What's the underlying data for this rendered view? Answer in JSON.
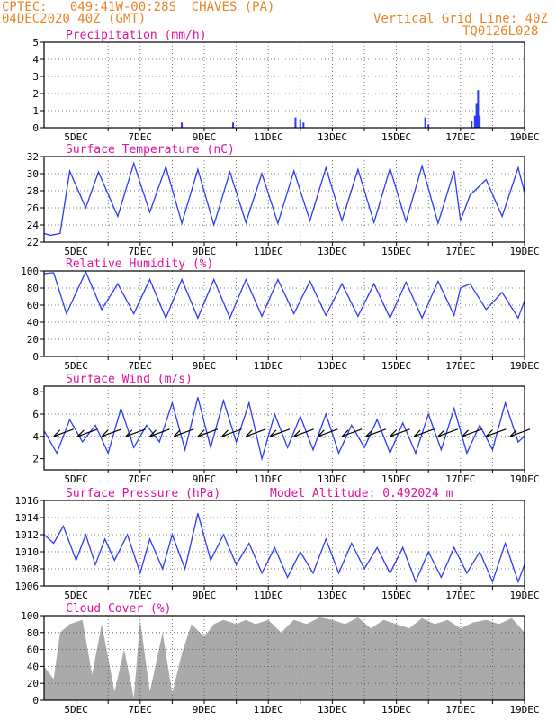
{
  "header": {
    "source": "CPTEC:",
    "location": "049:41W-00:28S",
    "station": "CHAVES (PA)",
    "init": "04DEC2020 40Z (GMT)",
    "grid_note": "Vertical Grid Line: 40Z",
    "code": "TQ0126L028"
  },
  "colors": {
    "header": "#e8862a",
    "title": "#e0119c",
    "line": "#2b3cf0",
    "cloud": "#aaaaaa"
  },
  "x_axis": {
    "ticks": [
      "5DEC",
      "7DEC",
      "9DEC",
      "11DEC",
      "13DEC",
      "15DEC",
      "17DEC",
      "19DEC"
    ]
  },
  "chart_data": [
    {
      "id": "precip",
      "type": "bar",
      "title": "Precipitation (mm/h)",
      "ylim": [
        0,
        5
      ],
      "yticks": [
        "0",
        "1",
        "2",
        "3",
        "4",
        "5"
      ],
      "x": [
        8.3,
        9.9,
        11.85,
        12.0,
        12.1,
        15.9,
        16.0,
        17.35,
        17.45,
        17.5,
        17.55,
        17.6
      ],
      "values": [
        0.3,
        0.3,
        0.6,
        0.5,
        0.3,
        0.6,
        0.2,
        0.4,
        0.7,
        1.4,
        2.2,
        0.7
      ]
    },
    {
      "id": "temp",
      "type": "line",
      "title": "Surface Temperature (nC)",
      "ylim": [
        22,
        32
      ],
      "yticks": [
        "22",
        "24",
        "26",
        "28",
        "30",
        "32"
      ],
      "x": [
        4.0,
        4.2,
        4.5,
        4.8,
        5.3,
        5.7,
        6.3,
        6.8,
        7.3,
        7.8,
        8.3,
        8.8,
        9.3,
        9.8,
        10.3,
        10.8,
        11.3,
        11.8,
        12.3,
        12.8,
        13.3,
        13.8,
        14.3,
        14.8,
        15.3,
        15.8,
        16.3,
        16.8,
        17.0,
        17.3,
        17.8,
        18.3,
        18.8,
        19.0
      ],
      "values": [
        23.0,
        22.8,
        23.0,
        30.3,
        26.0,
        30.2,
        25.0,
        31.2,
        25.5,
        30.8,
        24.2,
        30.5,
        24.0,
        30.2,
        24.3,
        30.0,
        24.2,
        30.3,
        24.5,
        30.7,
        24.5,
        30.5,
        24.3,
        30.6,
        24.4,
        30.9,
        24.2,
        30.3,
        24.5,
        27.5,
        29.3,
        25.0,
        30.7,
        27.8
      ]
    },
    {
      "id": "rh",
      "type": "line",
      "title": "Relative Humidity (%)",
      "ylim": [
        0,
        100
      ],
      "yticks": [
        "0",
        "20",
        "40",
        "60",
        "80",
        "100"
      ],
      "x": [
        4.0,
        4.3,
        4.7,
        5.3,
        5.8,
        6.3,
        6.8,
        7.3,
        7.8,
        8.3,
        8.8,
        9.3,
        9.8,
        10.3,
        10.8,
        11.3,
        11.8,
        12.3,
        12.8,
        13.3,
        13.8,
        14.3,
        14.8,
        15.3,
        15.8,
        16.3,
        16.8,
        17.0,
        17.3,
        17.8,
        18.3,
        18.8,
        19.0
      ],
      "values": [
        97,
        98,
        50,
        99,
        55,
        85,
        50,
        90,
        45,
        90,
        45,
        90,
        45,
        90,
        47,
        90,
        50,
        88,
        48,
        85,
        47,
        85,
        45,
        87,
        45,
        88,
        48,
        80,
        85,
        55,
        75,
        45,
        65
      ]
    },
    {
      "id": "wind",
      "type": "line",
      "title": "Surface Wind (m/s)",
      "ylim": [
        1,
        8.5
      ],
      "yticks": [
        "2",
        "4",
        "6",
        "8"
      ],
      "x": [
        4.0,
        4.4,
        4.8,
        5.2,
        5.6,
        6.0,
        6.4,
        6.8,
        7.2,
        7.6,
        8.0,
        8.4,
        8.8,
        9.2,
        9.6,
        10.0,
        10.4,
        10.8,
        11.2,
        11.6,
        12.0,
        12.4,
        12.8,
        13.2,
        13.6,
        14.0,
        14.4,
        14.8,
        15.2,
        15.6,
        16.0,
        16.4,
        16.8,
        17.2,
        17.6,
        18.0,
        18.4,
        18.8,
        19.0
      ],
      "values": [
        4.5,
        2.5,
        5.5,
        3.5,
        5.0,
        2.5,
        6.5,
        3.0,
        5.0,
        3.5,
        7.0,
        2.8,
        7.5,
        3.0,
        7.2,
        3.5,
        7.0,
        2.0,
        6.0,
        3.0,
        5.8,
        2.8,
        6.0,
        2.5,
        5.0,
        3.0,
        5.5,
        2.5,
        5.2,
        2.5,
        6.0,
        2.8,
        6.5,
        2.5,
        5.0,
        2.8,
        7.0,
        3.5,
        4.0
      ]
    },
    {
      "id": "press",
      "type": "line",
      "title": "Surface Pressure (hPa)",
      "annotation": "Model Altitude: 0.492024 m",
      "ylim": [
        1006,
        1016
      ],
      "yticks": [
        "1006",
        "1008",
        "1010",
        "1012",
        "1014",
        "1016"
      ],
      "x": [
        4.0,
        4.3,
        4.6,
        5.0,
        5.3,
        5.6,
        5.9,
        6.2,
        6.6,
        7.0,
        7.3,
        7.7,
        8.0,
        8.4,
        8.8,
        9.2,
        9.6,
        10.0,
        10.4,
        10.8,
        11.2,
        11.6,
        12.0,
        12.4,
        12.8,
        13.2,
        13.6,
        14.0,
        14.4,
        14.8,
        15.2,
        15.6,
        16.0,
        16.4,
        16.8,
        17.2,
        17.6,
        18.0,
        18.4,
        18.8,
        19.0
      ],
      "values": [
        1012,
        1011,
        1013,
        1009,
        1012,
        1008.5,
        1011.5,
        1009,
        1012,
        1007.5,
        1011.5,
        1008,
        1012,
        1008,
        1014.5,
        1009,
        1012,
        1008.5,
        1011,
        1007.5,
        1010.5,
        1007,
        1010,
        1007.5,
        1011.5,
        1007.5,
        1011,
        1008,
        1010.5,
        1007.5,
        1010.5,
        1006.5,
        1010,
        1007,
        1010.5,
        1007.5,
        1010,
        1006.5,
        1011,
        1006.5,
        1008.5
      ]
    },
    {
      "id": "cloud",
      "type": "area",
      "title": "Cloud Cover (%)",
      "ylim": [
        0,
        100
      ],
      "yticks": [
        "0",
        "20",
        "40",
        "60",
        "80",
        "100"
      ],
      "x": [
        4.0,
        4.3,
        4.5,
        4.8,
        5.2,
        5.5,
        5.8,
        6.2,
        6.5,
        6.8,
        7.0,
        7.3,
        7.7,
        8.0,
        8.3,
        8.6,
        9.0,
        9.3,
        9.6,
        10.0,
        10.3,
        10.6,
        11.0,
        11.4,
        11.8,
        12.2,
        12.6,
        13.0,
        13.4,
        13.8,
        14.2,
        14.6,
        15.0,
        15.4,
        15.8,
        16.2,
        16.6,
        17.0,
        17.4,
        17.8,
        18.2,
        18.6,
        19.0
      ],
      "values": [
        40,
        25,
        80,
        90,
        95,
        30,
        90,
        10,
        60,
        3,
        95,
        10,
        80,
        8,
        55,
        90,
        75,
        90,
        95,
        90,
        95,
        90,
        95,
        80,
        95,
        90,
        98,
        95,
        90,
        98,
        85,
        95,
        90,
        85,
        97,
        90,
        95,
        85,
        92,
        95,
        90,
        97,
        80
      ]
    }
  ]
}
